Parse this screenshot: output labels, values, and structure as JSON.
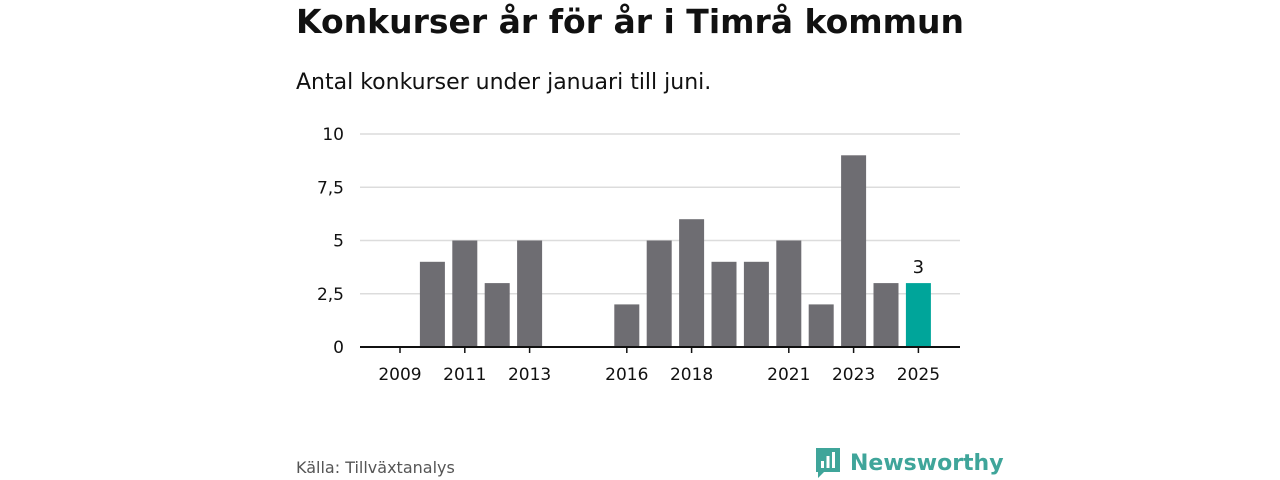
{
  "title": "Konkurser år för år i Timrå kommun",
  "subtitle": "Antal konkurser under januari till juni.",
  "source": "Källa: Tillväxtanalys",
  "logo": {
    "text": "Newsworthy",
    "icon": "newsworthy-chart-icon",
    "color": "#3fa59a"
  },
  "colors": {
    "bar": "#6e6d72",
    "highlight": "#00a59a",
    "grid": "#dcdcdc",
    "axis": "#111111"
  },
  "chart_data": {
    "type": "bar",
    "categories": [
      "2009",
      "2010",
      "2011",
      "2012",
      "2013",
      "2014",
      "2015",
      "2016",
      "2017",
      "2018",
      "2019",
      "2020",
      "2021",
      "2022",
      "2023",
      "2024",
      "2025"
    ],
    "values": [
      0,
      4,
      5,
      3,
      5,
      0,
      0,
      2,
      5,
      6,
      4,
      4,
      5,
      2,
      9,
      3,
      3
    ],
    "x_tick_labels": [
      "2009",
      "2011",
      "2013",
      "2016",
      "2018",
      "2021",
      "2023",
      "2025"
    ],
    "y_ticks": [
      0,
      2.5,
      5,
      7.5,
      10
    ],
    "y_tick_labels": [
      "0",
      "2,5",
      "5",
      "7,5",
      "10"
    ],
    "ylim": [
      0,
      10
    ],
    "highlight_category": "2025",
    "data_labels": [
      {
        "category": "2025",
        "text": "3"
      }
    ],
    "grid": true,
    "legend": "none"
  }
}
